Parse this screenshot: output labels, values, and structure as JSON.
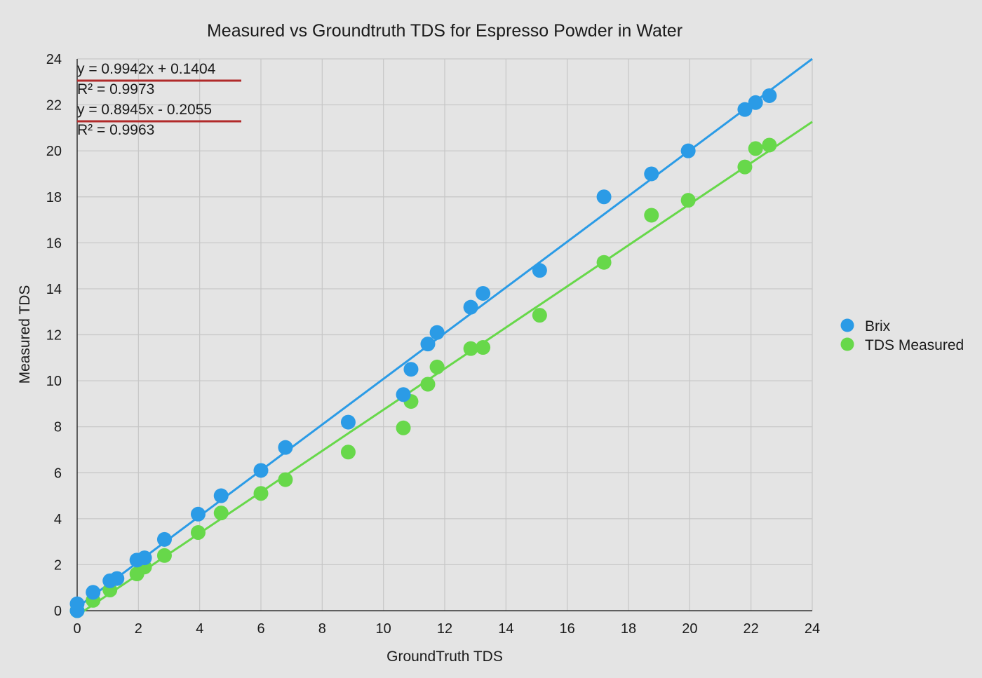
{
  "colors": {
    "brix": "#2b9be6",
    "tds": "#67d84a",
    "grid": "#c6c6c6",
    "axis": "#333333",
    "annotation_underline": "#b12a2a",
    "background": "#e4e4e4"
  },
  "chart_data": {
    "type": "scatter",
    "title": "Measured vs Groundtruth TDS for Espresso Powder in Water",
    "xlabel": "GroundTruth TDS",
    "ylabel": "Measured TDS",
    "xlim": [
      0,
      24
    ],
    "ylim": [
      0,
      24
    ],
    "x_ticks": [
      "0",
      "2",
      "4",
      "6",
      "8",
      "10",
      "12",
      "14",
      "16",
      "18",
      "20",
      "22",
      "24"
    ],
    "y_ticks": [
      "0",
      "2",
      "4",
      "6",
      "8",
      "10",
      "12",
      "14",
      "16",
      "18",
      "20",
      "22",
      "24"
    ],
    "grid": true,
    "legend_position": "right",
    "series": [
      {
        "name": "Brix",
        "color": "#2b9be6",
        "x": [
          0,
          0,
          0.52,
          1.07,
          1.3,
          1.95,
          2.2,
          2.85,
          3.95,
          4.7,
          6.0,
          6.8,
          8.85,
          10.65,
          10.9,
          11.45,
          11.75,
          12.85,
          13.25,
          15.1,
          17.2,
          18.75,
          19.95,
          21.8,
          22.15,
          22.6
        ],
        "y": [
          0,
          0.3,
          0.8,
          1.3,
          1.4,
          2.2,
          2.3,
          3.1,
          4.2,
          5.0,
          6.1,
          7.1,
          8.2,
          9.4,
          10.5,
          11.6,
          12.1,
          13.2,
          13.8,
          14.8,
          18.0,
          19.0,
          20.0,
          21.8,
          22.1,
          22.4
        ]
      },
      {
        "name": "TDS Measured",
        "color": "#67d84a",
        "x": [
          0,
          0.52,
          1.07,
          1.95,
          2.2,
          2.85,
          3.95,
          4.7,
          6.0,
          6.8,
          8.85,
          10.65,
          10.9,
          11.45,
          11.75,
          12.85,
          13.25,
          15.1,
          17.2,
          18.75,
          19.95,
          21.8,
          22.15,
          22.6
        ],
        "y": [
          0,
          0.45,
          0.9,
          1.6,
          1.9,
          2.4,
          3.4,
          4.25,
          5.1,
          5.7,
          6.9,
          7.95,
          9.1,
          9.85,
          10.6,
          11.4,
          11.45,
          12.85,
          15.15,
          17.2,
          17.85,
          19.3,
          20.1,
          20.25
        ]
      }
    ],
    "trendlines": [
      {
        "series": "Brix",
        "slope": 0.9942,
        "intercept": 0.1404,
        "equation": "y = 0.9942x + 0.1404",
        "r2": "R² = 0.9973"
      },
      {
        "series": "TDS Measured",
        "slope": 0.8945,
        "intercept": -0.2055,
        "equation": "y = 0.8945x - 0.2055",
        "r2": "R² = 0.9963"
      }
    ]
  }
}
